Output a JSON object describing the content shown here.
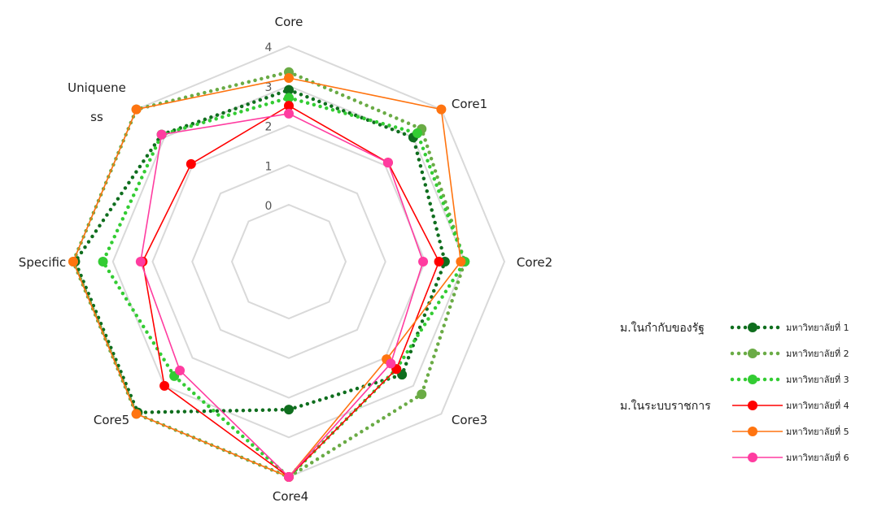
{
  "chart_data": {
    "type": "radar",
    "axes": [
      "Core",
      "Core1",
      "Core2",
      "Core3",
      "Core4",
      "Core5",
      "Specific",
      "Uniquene\nss"
    ],
    "ticks": [
      "0",
      "1",
      "2",
      "3",
      "4"
    ],
    "rlim": [
      0,
      4
    ],
    "grid": true,
    "legend_position": "right",
    "legend_groups": [
      {
        "label": "ม.ในกำกับของรัฐ",
        "series_index": 0
      },
      {
        "label": "ม.ในระบบราชการ",
        "series_index": 3
      }
    ],
    "series": [
      {
        "name": "มหาวิทยาลัยที่ 1",
        "color": "#0f6e1e",
        "style": "dotted",
        "values": [
          2.9,
          3.0,
          2.5,
          2.6,
          2.3,
          3.95,
          3.95,
          3.1
        ]
      },
      {
        "name": "มหาวิทยาลัยที่ 2",
        "color": "#6aab45",
        "style": "dotted",
        "values": [
          3.35,
          3.3,
          3.0,
          3.3,
          4.0,
          4.0,
          4.0,
          4.0
        ]
      },
      {
        "name": "มหาวิทยาลัยที่ 3",
        "color": "#33cc33",
        "style": "dotted",
        "values": [
          2.7,
          3.15,
          3.0,
          2.4,
          4.0,
          2.65,
          3.25,
          3.1
        ]
      },
      {
        "name": "มหาวิทยาลัยที่ 4",
        "color": "#ff0000",
        "style": "solid",
        "values": [
          2.5,
          2.1,
          2.35,
          2.4,
          4.0,
          3.0,
          2.25,
          2.05
        ]
      },
      {
        "name": "มหาวิทยาลัยที่ 5",
        "color": "#ff7410",
        "style": "solid",
        "values": [
          3.2,
          4.0,
          2.9,
          2.05,
          4.0,
          4.0,
          4.0,
          4.0
        ]
      },
      {
        "name": "มหาวิทยาลัยที่ 6",
        "color": "#ff3ca0",
        "style": "solid",
        "values": [
          2.3,
          2.1,
          1.95,
          2.2,
          4.0,
          2.45,
          2.3,
          3.1
        ]
      }
    ]
  }
}
